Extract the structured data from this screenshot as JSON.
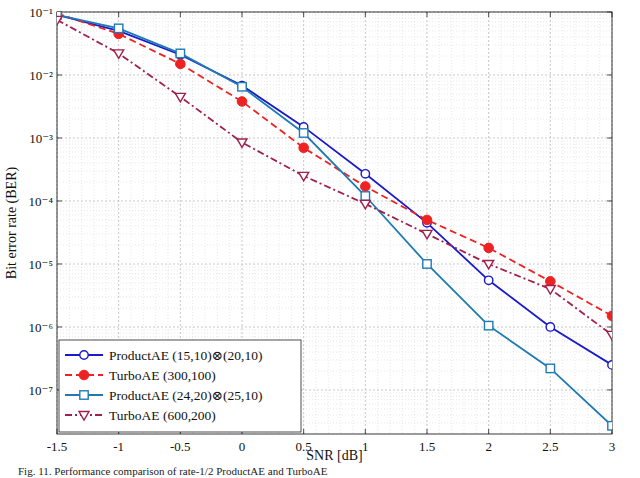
{
  "chart_data": {
    "type": "line",
    "x_label": "SNR [dB]",
    "y_label": "Bit error rate (BER)",
    "annotations": [
      "Fig. 11.   Performance comparison of rate-1/2 ProductAE and TurboAE"
    ],
    "x": [
      -1.5,
      -1,
      -0.5,
      0,
      0.5,
      1,
      1.5,
      2,
      2.5,
      3
    ],
    "xlim": [
      -1.5,
      3
    ],
    "xticks": [
      -1.5,
      -1,
      -0.5,
      0,
      0.5,
      1,
      1.5,
      2,
      2.5,
      3
    ],
    "ylim": [
      2e-08,
      0.1
    ],
    "yticks": [
      {
        "value": 1e-07,
        "label": "10⁻⁷"
      },
      {
        "value": 1e-06,
        "label": "10⁻⁶"
      },
      {
        "value": 1e-05,
        "label": "10⁻⁵"
      },
      {
        "value": 0.0001,
        "label": "10⁻⁴"
      },
      {
        "value": 0.001,
        "label": "10⁻³"
      },
      {
        "value": 0.01,
        "label": "10⁻²"
      },
      {
        "value": 0.1,
        "label": "10⁻¹"
      }
    ],
    "log": "y",
    "grid": true,
    "legend": "lower left",
    "series": [
      {
        "name": "ProductAE (15,10)⊗(20,10)",
        "color": "#1a1acc",
        "marker": "circle",
        "line_style": "solid",
        "values": [
          0.09,
          0.05,
          0.021,
          0.0068,
          0.0015,
          0.00027,
          4.5e-05,
          5.5e-06,
          1e-06,
          2.5e-07
        ]
      },
      {
        "name": "TurboAE (300,100)",
        "color": "#ee2222",
        "marker": "filled-circle",
        "line_style": "dashed",
        "values": [
          0.095,
          0.045,
          0.015,
          0.0038,
          0.0007,
          0.00017,
          5e-05,
          1.8e-05,
          5.3e-06,
          1.5e-06
        ]
      },
      {
        "name": "ProductAE (24,20)⊗(25,10)",
        "color": "#1f7ab4",
        "marker": "square",
        "line_style": "solid",
        "values": [
          0.09,
          0.055,
          0.022,
          0.0065,
          0.0012,
          0.00012,
          1e-05,
          1.05e-06,
          2.2e-07,
          2.7e-08
        ]
      },
      {
        "name": "TurboAE (600,200)",
        "color": "#a0204a",
        "marker": "triangle-down",
        "line_style": "dashdot",
        "values": [
          0.075,
          0.022,
          0.0045,
          0.00085,
          0.00025,
          9e-05,
          3e-05,
          1e-05,
          4e-06,
          7.5e-07
        ]
      }
    ]
  }
}
